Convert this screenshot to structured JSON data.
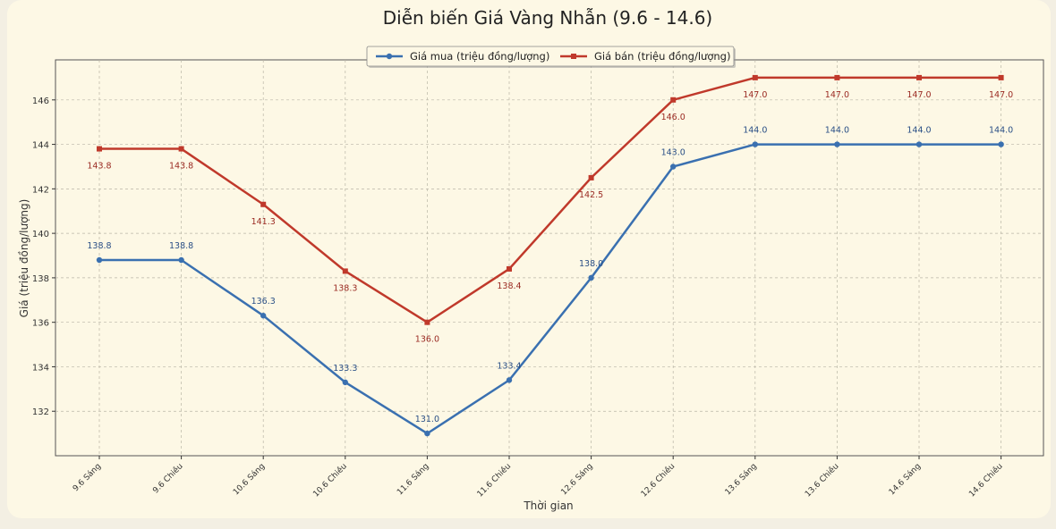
{
  "chart_data": {
    "type": "line",
    "title": "Diễn biến Giá Vàng Nhẫn (9.6 - 14.6)",
    "xlabel": "Thời gian",
    "ylabel": "Giá (triệu đồng/lượng)",
    "categories": [
      "9.6 Sáng",
      "9.6 Chiều",
      "10.6 Sáng",
      "10.6 Chiều",
      "11.6 Sáng",
      "11.6 Chiều",
      "12.6 Sáng",
      "12.6 Chiều",
      "13.6 Sáng",
      "13.6 Chiều",
      "14.6 Sáng",
      "14.6 Chiều"
    ],
    "ylim": [
      130,
      147.8
    ],
    "yticks": [
      132,
      134,
      136,
      138,
      140,
      142,
      144,
      146
    ],
    "grid": true,
    "legend_position": "top-center",
    "series": [
      {
        "name": "Giá mua (triệu đồng/lượng)",
        "color": "#3a70b0",
        "marker": "circle",
        "values": [
          138.8,
          138.8,
          136.3,
          133.3,
          131.0,
          133.4,
          138.0,
          143.0,
          144.0,
          144.0,
          144.0,
          144.0
        ],
        "labels": [
          "138.8",
          "138.8",
          "136.3",
          "133.3",
          "131.0",
          "133.4",
          "138.0",
          "143.0",
          "144.0",
          "144.0",
          "144.0",
          "144.0"
        ]
      },
      {
        "name": "Giá bán (triệu đồng/lượng)",
        "color": "#c0392b",
        "marker": "square",
        "values": [
          143.8,
          143.8,
          141.3,
          138.3,
          136.0,
          138.4,
          142.5,
          146.0,
          147.0,
          147.0,
          147.0,
          147.0
        ],
        "labels": [
          "143.8",
          "143.8",
          "141.3",
          "138.3",
          "136.0",
          "138.4",
          "142.5",
          "146.0",
          "147.0",
          "147.0",
          "147.0",
          "147.0"
        ]
      }
    ]
  }
}
